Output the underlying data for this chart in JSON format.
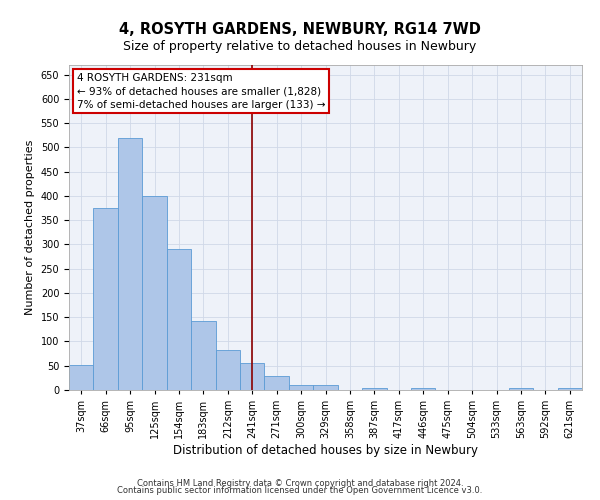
{
  "title_line1": "4, ROSYTH GARDENS, NEWBURY, RG14 7WD",
  "title_line2": "Size of property relative to detached houses in Newbury",
  "xlabel": "Distribution of detached houses by size in Newbury",
  "ylabel": "Number of detached properties",
  "footer_line1": "Contains HM Land Registry data © Crown copyright and database right 2024.",
  "footer_line2": "Contains public sector information licensed under the Open Government Licence v3.0.",
  "annotation_line1": "4 ROSYTH GARDENS: 231sqm",
  "annotation_line2": "← 93% of detached houses are smaller (1,828)",
  "annotation_line3": "7% of semi-detached houses are larger (133) →",
  "bar_categories": [
    "37sqm",
    "66sqm",
    "95sqm",
    "125sqm",
    "154sqm",
    "183sqm",
    "212sqm",
    "241sqm",
    "271sqm",
    "300sqm",
    "329sqm",
    "358sqm",
    "387sqm",
    "417sqm",
    "446sqm",
    "475sqm",
    "504sqm",
    "533sqm",
    "563sqm",
    "592sqm",
    "621sqm"
  ],
  "bar_values": [
    51,
    375,
    519,
    400,
    291,
    143,
    82,
    55,
    28,
    11,
    11,
    0,
    5,
    0,
    5,
    0,
    0,
    0,
    5,
    0,
    5
  ],
  "bar_color": "#aec6e8",
  "bar_edgecolor": "#5b9bd5",
  "vline_x_index": 7,
  "vline_color": "#8b0000",
  "annotation_box_edgecolor": "#cc0000",
  "annotation_box_facecolor": "#ffffff",
  "ylim": [
    0,
    670
  ],
  "yticks": [
    0,
    50,
    100,
    150,
    200,
    250,
    300,
    350,
    400,
    450,
    500,
    550,
    600,
    650
  ],
  "grid_color": "#d0d8e8",
  "bg_color": "#eef2f9",
  "title1_fontsize": 10.5,
  "title2_fontsize": 9,
  "ylabel_fontsize": 8,
  "xlabel_fontsize": 8.5,
  "tick_fontsize": 7,
  "footer_fontsize": 6,
  "annotation_fontsize": 7.5
}
